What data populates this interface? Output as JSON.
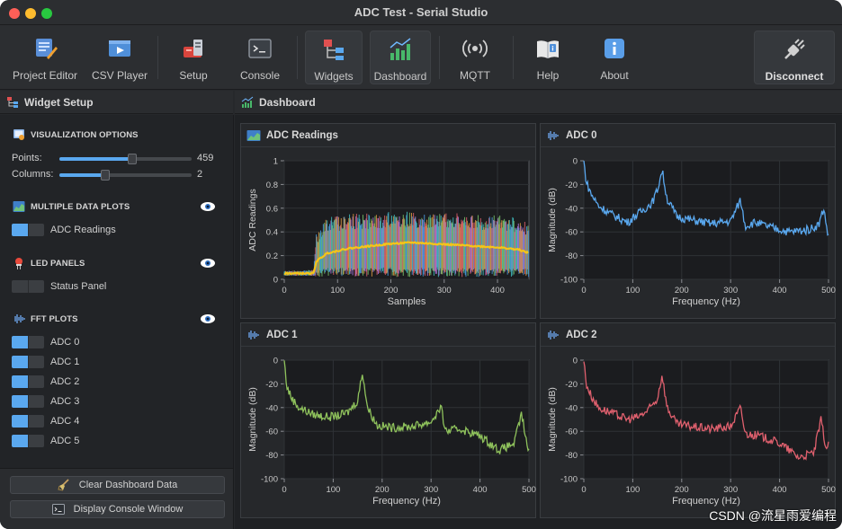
{
  "window": {
    "title": "ADC Test - Serial Studio"
  },
  "toolbar": {
    "project_editor": "Project Editor",
    "csv_player": "CSV Player",
    "setup": "Setup",
    "console": "Console",
    "widgets": "Widgets",
    "dashboard": "Dashboard",
    "mqtt": "MQTT",
    "help": "Help",
    "about": "About",
    "disconnect": "Disconnect"
  },
  "sidebar": {
    "header": "Widget Setup",
    "visualization": {
      "title": "VISUALIZATION OPTIONS",
      "points_label": "Points:",
      "points_value": "459",
      "points_fraction": 0.55,
      "columns_label": "Columns:",
      "columns_value": "2",
      "columns_fraction": 0.35
    },
    "multiple_data_plots": {
      "title": "MULTIPLE DATA PLOTS",
      "items": [
        {
          "label": "ADC Readings",
          "enabled": true
        }
      ]
    },
    "led_panels": {
      "title": "LED PANELS",
      "items": [
        {
          "label": "Status Panel",
          "enabled": false
        }
      ]
    },
    "fft_plots": {
      "title": "FFT PLOTS",
      "items": [
        {
          "label": "ADC 0",
          "enabled": true
        },
        {
          "label": "ADC 1",
          "enabled": true
        },
        {
          "label": "ADC 2",
          "enabled": true
        },
        {
          "label": "ADC 3",
          "enabled": true
        },
        {
          "label": "ADC 4",
          "enabled": true
        },
        {
          "label": "ADC 5",
          "enabled": true
        }
      ]
    },
    "clear_button": "Clear Dashboard Data",
    "console_button": "Display Console Window"
  },
  "dashboard": {
    "header": "Dashboard",
    "widgets": [
      {
        "title": "ADC Readings"
      },
      {
        "title": "ADC 0"
      },
      {
        "title": "ADC 1"
      },
      {
        "title": "ADC 2"
      }
    ]
  },
  "watermark": "CSDN @流星雨爱编程",
  "colors": {
    "accent": "#5aa8ef",
    "adc0": "#5aa8ef",
    "adc1": "#8fc25c",
    "adc2": "#e0606e",
    "highlight": "#f5c518"
  },
  "chart_data": [
    {
      "type": "line",
      "title": "ADC Readings",
      "xlabel": "Samples",
      "ylabel": "ADC Readings",
      "xlim": [
        0,
        459
      ],
      "ylim": [
        0,
        1
      ],
      "xticks": [
        "0",
        "100",
        "200",
        "300",
        "400"
      ],
      "yticks": [
        "0",
        "0.2",
        "0.4",
        "0.6",
        "0.8",
        "1"
      ],
      "grid": true,
      "series": [
        {
          "color": "#f5c518",
          "x": [
            0,
            55,
            60,
            80,
            120,
            160,
            200,
            240,
            280,
            320,
            360,
            400,
            440,
            459
          ],
          "y": [
            0.05,
            0.05,
            0.15,
            0.22,
            0.26,
            0.28,
            0.3,
            0.31,
            0.3,
            0.29,
            0.28,
            0.27,
            0.25,
            0.22
          ]
        }
      ],
      "envelope": {
        "x": [
          0,
          55,
          60,
          80,
          120,
          160,
          200,
          240,
          280,
          320,
          360,
          400,
          440,
          459
        ],
        "upper": [
          0.07,
          0.08,
          0.38,
          0.52,
          0.55,
          0.56,
          0.57,
          0.57,
          0.56,
          0.56,
          0.55,
          0.54,
          0.52,
          0.48
        ],
        "lower": [
          0.03,
          0.03,
          0.02,
          0.02,
          0.02,
          0.02,
          0.02,
          0.02,
          0.02,
          0.02,
          0.02,
          0.02,
          0.02,
          0.02
        ]
      }
    },
    {
      "type": "line",
      "title": "ADC 0",
      "xlabel": "Frequency (Hz)",
      "ylabel": "Magnitude (dB)",
      "xlim": [
        0,
        500
      ],
      "ylim": [
        -100,
        0
      ],
      "xticks": [
        "0",
        "100",
        "200",
        "300",
        "400",
        "500"
      ],
      "yticks": [
        "0",
        "-20",
        "-40",
        "-60",
        "-80",
        "-100"
      ],
      "grid": true,
      "series": [
        {
          "color": "#5aa8ef",
          "x": [
            0,
            5,
            15,
            30,
            60,
            90,
            100,
            120,
            140,
            150,
            160,
            170,
            190,
            220,
            260,
            300,
            320,
            330,
            350,
            380,
            420,
            460,
            480,
            490,
            500
          ],
          "y": [
            0,
            -18,
            -28,
            -38,
            -46,
            -52,
            -48,
            -42,
            -35,
            -25,
            -8,
            -32,
            -47,
            -50,
            -53,
            -51,
            -33,
            -55,
            -52,
            -56,
            -60,
            -58,
            -54,
            -40,
            -65
          ]
        }
      ]
    },
    {
      "type": "line",
      "title": "ADC 1",
      "xlabel": "Frequency (Hz)",
      "ylabel": "Magnitude (dB)",
      "xlim": [
        0,
        500
      ],
      "ylim": [
        -100,
        0
      ],
      "xticks": [
        "0",
        "100",
        "200",
        "300",
        "400",
        "500"
      ],
      "yticks": [
        "0",
        "-20",
        "-40",
        "-60",
        "-80",
        "-100"
      ],
      "grid": true,
      "series": [
        {
          "color": "#8fc25c",
          "x": [
            0,
            5,
            15,
            30,
            60,
            90,
            110,
            130,
            150,
            160,
            170,
            190,
            220,
            260,
            300,
            320,
            330,
            360,
            400,
            440,
            470,
            485,
            495,
            500
          ],
          "y": [
            0,
            -22,
            -32,
            -40,
            -46,
            -48,
            -47,
            -44,
            -34,
            -10,
            -40,
            -55,
            -57,
            -56,
            -52,
            -40,
            -60,
            -58,
            -64,
            -76,
            -70,
            -45,
            -70,
            -78
          ]
        }
      ]
    },
    {
      "type": "line",
      "title": "ADC 2",
      "xlabel": "Frequency (Hz)",
      "ylabel": "Magnitude (dB)",
      "xlim": [
        0,
        500
      ],
      "ylim": [
        -100,
        0
      ],
      "xticks": [
        "0",
        "100",
        "200",
        "300",
        "400",
        "500"
      ],
      "yticks": [
        "0",
        "-20",
        "-40",
        "-60",
        "-80",
        "-100"
      ],
      "grid": true,
      "series": [
        {
          "color": "#e0606e",
          "x": [
            0,
            5,
            15,
            30,
            60,
            90,
            110,
            130,
            150,
            160,
            170,
            190,
            220,
            260,
            300,
            320,
            330,
            360,
            400,
            440,
            470,
            485,
            495,
            500
          ],
          "y": [
            0,
            -20,
            -30,
            -40,
            -45,
            -50,
            -48,
            -43,
            -33,
            -12,
            -40,
            -54,
            -56,
            -58,
            -56,
            -40,
            -62,
            -64,
            -70,
            -82,
            -78,
            -50,
            -75,
            -72
          ]
        }
      ]
    }
  ]
}
